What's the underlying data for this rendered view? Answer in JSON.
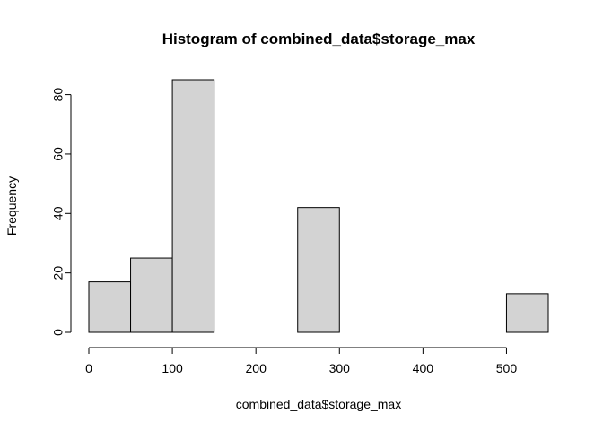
{
  "chart_data": {
    "type": "bar",
    "title": "Histogram of combined_data$storage_max",
    "xlabel": "combined_data$storage_max",
    "ylabel": "Frequency",
    "bins": [
      {
        "x0": 0,
        "x1": 50,
        "count": 17
      },
      {
        "x0": 50,
        "x1": 100,
        "count": 25
      },
      {
        "x0": 100,
        "x1": 150,
        "count": 85
      },
      {
        "x0": 150,
        "x1": 200,
        "count": 0
      },
      {
        "x0": 200,
        "x1": 250,
        "count": 0
      },
      {
        "x0": 250,
        "x1": 300,
        "count": 42
      },
      {
        "x0": 300,
        "x1": 350,
        "count": 0
      },
      {
        "x0": 350,
        "x1": 400,
        "count": 0
      },
      {
        "x0": 400,
        "x1": 450,
        "count": 0
      },
      {
        "x0": 450,
        "x1": 500,
        "count": 0
      },
      {
        "x0": 500,
        "x1": 550,
        "count": 13
      }
    ],
    "xticks": [
      0,
      100,
      200,
      300,
      400,
      500
    ],
    "yticks": [
      0,
      20,
      40,
      60,
      80
    ],
    "xlim": [
      0,
      550
    ],
    "ylim": [
      0,
      85
    ],
    "bar_color": "#d3d3d3",
    "border_color": "#000000",
    "grid": false,
    "legend": "none"
  }
}
